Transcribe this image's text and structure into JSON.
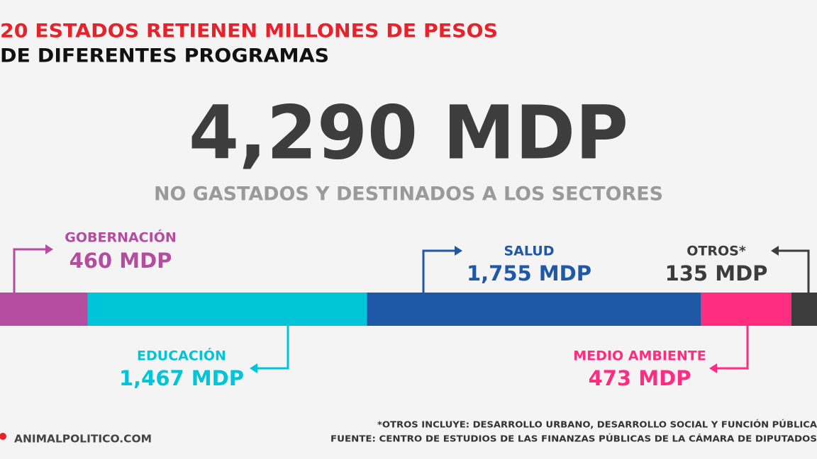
{
  "chart_data": {
    "type": "stacked-bar",
    "title": "20 ESTADOS RETIENEN MILLONES DE PESOS",
    "subtitle_line": "DE DIFERENTES PROGRAMAS",
    "headline": "4,290 MDP",
    "headline_caption": "NO GASTADOS Y DESTINADOS A LOS SECTORES",
    "categories": [
      "GOBERNACIÓN",
      "EDUCACIÓN",
      "SALUD",
      "MEDIO AMBIENTE",
      "OTROS*"
    ],
    "values": [
      460,
      1467,
      1755,
      473,
      135
    ],
    "value_labels": [
      "460 MDP",
      "1,467 MDP",
      "1,755 MDP",
      "473 MDP",
      "135 MDP"
    ],
    "colors": [
      "#b44c9f",
      "#00c4d8",
      "#1f58a7",
      "#ff2c7f",
      "#3c3c3c"
    ],
    "xlim": [
      0,
      4290
    ],
    "footnote": "*OTROS INCLUYE: DESARROLLO URBANO, DESARROLLO SOCIAL Y FUNCIÓN PÚBLICA",
    "source": "FUENTE: CENTRO DE ESTUDIOS DE LAS FINANZAS PÚBLICAS DE LA CÁMARA DE DIPUTADOS",
    "brand": "ANIMALPOLITICO.COM"
  }
}
